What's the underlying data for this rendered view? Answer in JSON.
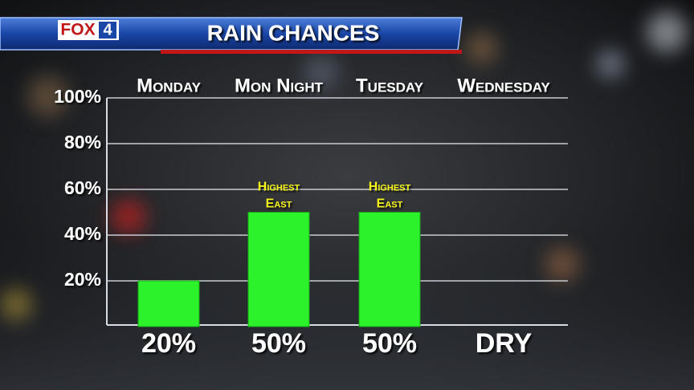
{
  "header": {
    "brand": "FOX",
    "channel": "4"
  },
  "chart_data": {
    "type": "bar",
    "title": "RAIN CHANCES",
    "categories": [
      "Monday",
      "Mon Night",
      "Tuesday",
      "Wednesday"
    ],
    "values": [
      20,
      50,
      50,
      0
    ],
    "value_labels": [
      "20%",
      "50%",
      "50%",
      "DRY"
    ],
    "notes": [
      null,
      [
        "Highest",
        "East"
      ],
      [
        "Highest",
        "East"
      ],
      null
    ],
    "color": "#2cf22c",
    "ylim": [
      0,
      100
    ],
    "yticks": [
      {
        "value": 20,
        "label": "20%"
      },
      {
        "value": 40,
        "label": "40%"
      },
      {
        "value": 60,
        "label": "60%"
      },
      {
        "value": 80,
        "label": "80%"
      },
      {
        "value": 100,
        "label": "100%"
      }
    ],
    "grid": true
  }
}
